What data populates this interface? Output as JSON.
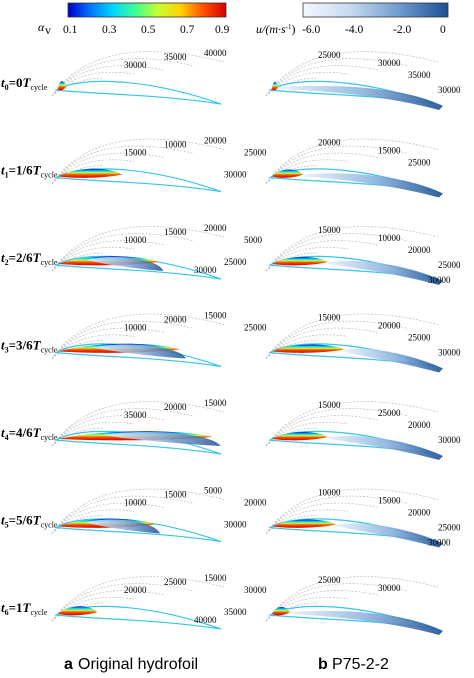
{
  "colorbar_left": {
    "symbol": "α",
    "subscript": "v",
    "ticks": [
      "0.1",
      "0.3",
      "0.5",
      "0.7",
      "0.9"
    ],
    "colors": [
      "#0000c8",
      "#0077ff",
      "#00d8ff",
      "#40ff90",
      "#c8ff30",
      "#ffd000",
      "#ff5000",
      "#d40000"
    ]
  },
  "colorbar_right": {
    "label_prefix": "u/(m·s",
    "label_sup": "-1",
    "label_suffix": ")",
    "ticks": [
      "-6.0",
      "-4.0",
      "-2.0",
      "0"
    ],
    "colors": [
      "#f4f8ff",
      "#c4d9ef",
      "#6e9bd0",
      "#1d4f92"
    ]
  },
  "rows": [
    {
      "t_sub": "0",
      "frac": "0",
      "left_contours": [
        "30000",
        "35000",
        "40000"
      ],
      "right_contours": [
        "25000",
        "30000",
        "35000",
        "30000"
      ]
    },
    {
      "t_sub": "1",
      "frac": "1/6",
      "left_contours": [
        "15000",
        "10000",
        "20000",
        "25000",
        "30000"
      ],
      "right_contours": [
        "20000",
        "15000",
        "25000"
      ]
    },
    {
      "t_sub": "2",
      "frac": "2/6",
      "left_contours": [
        "10000",
        "15000",
        "20000",
        "5000",
        "25000",
        "30000"
      ],
      "right_contours": [
        "15000",
        "10000",
        "20000",
        "25000",
        "30000"
      ]
    },
    {
      "t_sub": "3",
      "frac": "3/6",
      "left_contours": [
        "10000",
        "20000",
        "15000",
        "25000"
      ],
      "right_contours": [
        "15000",
        "20000",
        "25000",
        "30000"
      ]
    },
    {
      "t_sub": "4",
      "frac": "4/6",
      "left_contours": [
        "35000",
        "20000",
        "15000"
      ],
      "right_contours": [
        "15000",
        "25000",
        "20000",
        "30000"
      ]
    },
    {
      "t_sub": "5",
      "frac": "5/6",
      "left_contours": [
        "10000",
        "15000",
        "5000",
        "20000",
        "30000"
      ],
      "right_contours": [
        "10000",
        "15000",
        "20000",
        "25000",
        "30000"
      ]
    },
    {
      "t_sub": "6",
      "frac": "1",
      "left_contours": [
        "20000",
        "25000",
        "15000",
        "30000",
        "35000",
        "40000"
      ],
      "right_contours": [
        "25000",
        "30000"
      ]
    }
  ],
  "captions": {
    "a_letter": "a",
    "a_text": "Original hydrofoil",
    "b_letter": "b",
    "b_text": "P75-2-2"
  },
  "cycle_symbol": "T",
  "cycle_sub": "cycle",
  "time_symbol": "t"
}
